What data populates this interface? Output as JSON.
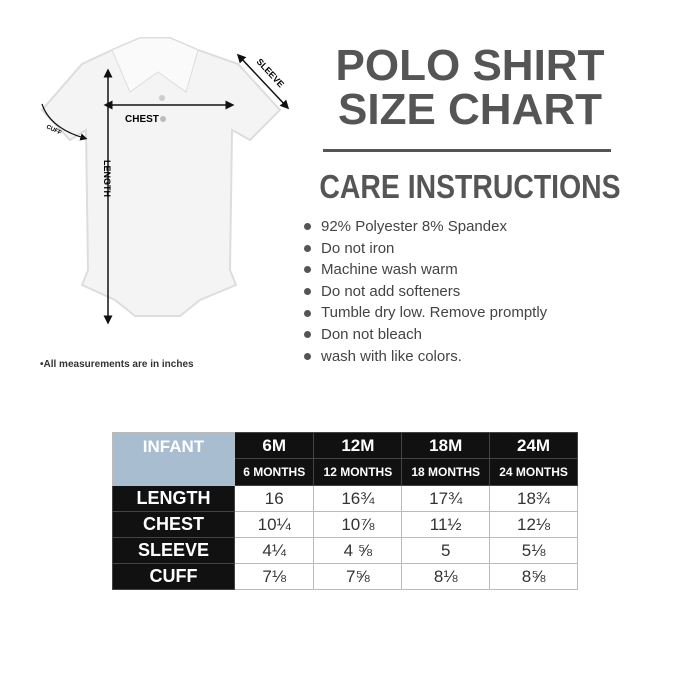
{
  "diagram": {
    "chest": "CHEST",
    "length": "LENGTH",
    "sleeve": "SLEEVE",
    "cuff": "CUFF",
    "note": "•All measurements are in inches"
  },
  "title_line1": "POLO SHIRT",
  "title_line2": "SIZE CHART",
  "care_title": "CARE INSTRUCTIONS",
  "care_items": [
    "92% Polyester 8% Spandex",
    "Do not iron",
    "Machine wash warm",
    "Do not add softeners",
    "Tumble dry low. Remove promptly",
    "Don not bleach",
    "wash with like colors."
  ],
  "table": {
    "corner": "INFANT",
    "sizes": [
      {
        "code": "6M",
        "label": "6 MONTHS"
      },
      {
        "code": "12M",
        "label": "12 MONTHS"
      },
      {
        "code": "18M",
        "label": "18 MONTHS"
      },
      {
        "code": "24M",
        "label": "24 MONTHS"
      }
    ],
    "rows": [
      {
        "label": "LENGTH",
        "values": [
          "16",
          "16¾",
          "17¾",
          "18¾"
        ]
      },
      {
        "label": "CHEST",
        "values": [
          "10¼",
          "10⅞",
          "11½",
          "12⅛"
        ]
      },
      {
        "label": "SLEEVE",
        "values": [
          "4¼",
          "4 ⅝",
          "5",
          "5⅛"
        ]
      },
      {
        "label": "CUFF",
        "values": [
          "7⅛",
          "7⅝",
          "8⅛",
          "8⅝"
        ]
      }
    ]
  },
  "colors": {
    "header_blue": "#a9bdd0",
    "header_black": "#111111",
    "title_gray": "#555555"
  }
}
